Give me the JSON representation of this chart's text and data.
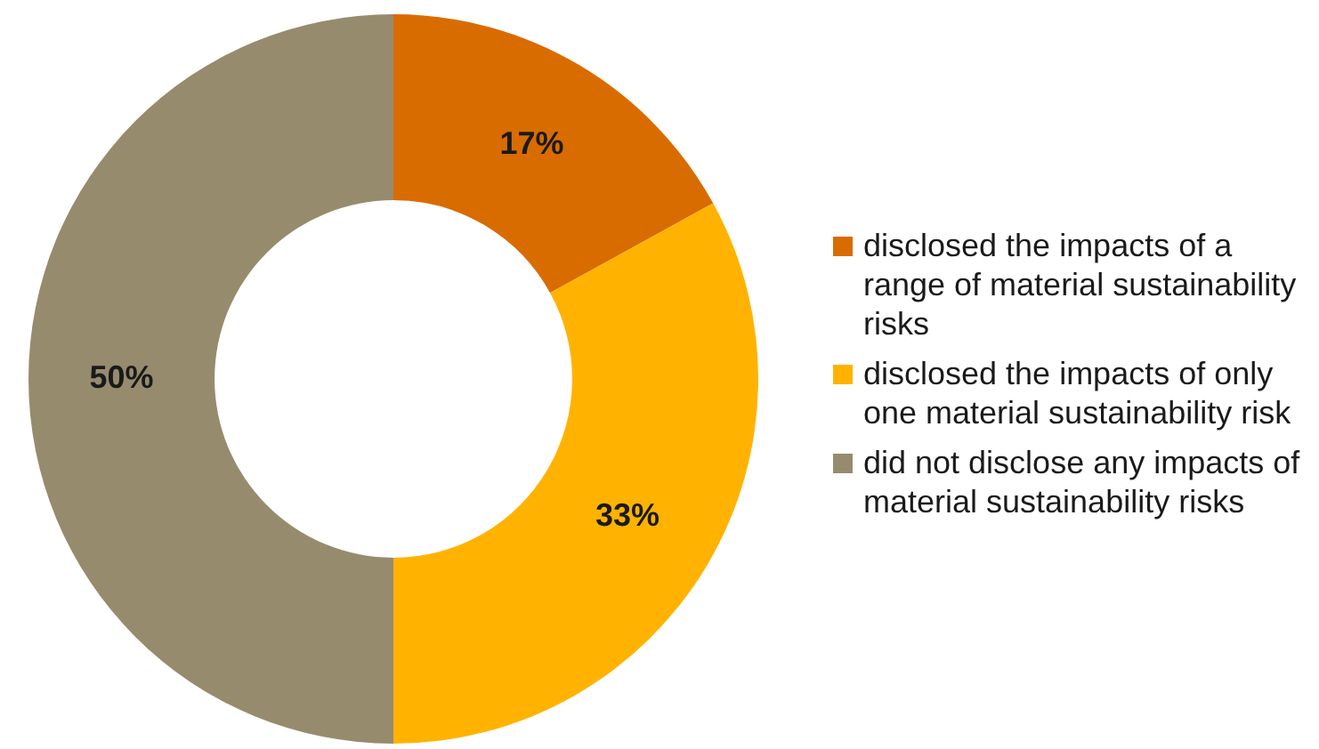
{
  "chart_data": {
    "type": "donut",
    "categories": [
      "disclosed the impacts of a range of material sustainability risks",
      "disclosed the impacts of only one material sustainability risk",
      "did not disclose any impacts of material sustainability risks"
    ],
    "values": [
      17,
      33,
      50
    ],
    "colors": [
      "#d96c00",
      "#ffb300",
      "#978b6e"
    ],
    "value_labels": [
      "17%",
      "33%",
      "50%"
    ],
    "legend": "right"
  }
}
